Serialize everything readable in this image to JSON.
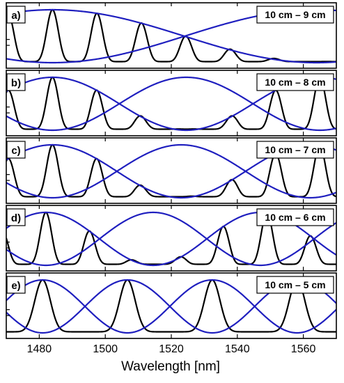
{
  "chart_data": {
    "type": "line",
    "xlabel": "Wavelength [nm]",
    "xlim": [
      1470,
      1570
    ],
    "xticks": [
      1480,
      1500,
      1520,
      1540,
      1560
    ],
    "grid": false,
    "colors": {
      "primary": "#000000",
      "envelope": "#1f1fbf"
    },
    "panels": [
      {
        "letter": "a)",
        "title": "10 cm – 9 cm",
        "fine_period_nm": 13.5,
        "envelope_period_nm": 160,
        "envelope_peak_nm": 1484
      },
      {
        "letter": "b)",
        "title": "10 cm – 8 cm",
        "fine_period_nm": 13.5,
        "envelope_period_nm": 81,
        "envelope_peak_nm": 1484
      },
      {
        "letter": "c)",
        "title": "10 cm – 7 cm",
        "fine_period_nm": 13.5,
        "envelope_period_nm": 78,
        "envelope_peak_nm": 1484
      },
      {
        "letter": "d)",
        "title": "10 cm – 6 cm",
        "fine_period_nm": 13.4,
        "envelope_period_nm": 65,
        "envelope_peak_nm": 1482
      },
      {
        "letter": "e)",
        "title": "10 cm – 5 cm",
        "fine_period_nm": 25.7,
        "envelope_period_nm": 51.4,
        "envelope_peak_nm": 1481
      }
    ]
  }
}
